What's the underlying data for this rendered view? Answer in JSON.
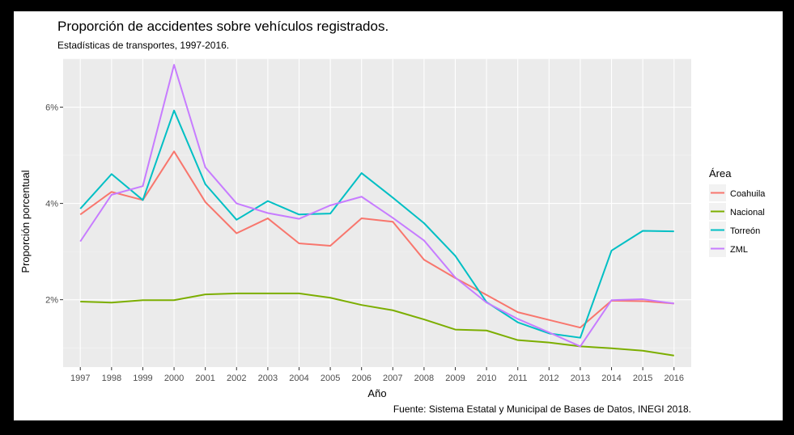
{
  "chart_data": {
    "type": "line",
    "title": "Proporción de accidentes sobre vehículos registrados.",
    "subtitle": "Estadísticas de transportes, 1997-2016.",
    "xlabel": "Año",
    "ylabel": "Proporción porcentual",
    "caption": "Fuente: Sistema Estatal y Municipal de Bases de Datos, INEGI 2018.",
    "x": [
      1997,
      1998,
      1999,
      2000,
      2001,
      2002,
      2003,
      2004,
      2005,
      2006,
      2007,
      2008,
      2009,
      2010,
      2011,
      2012,
      2013,
      2014,
      2015,
      2016
    ],
    "ylim": [
      0.6,
      7.0
    ],
    "yticks": [
      2,
      4,
      6
    ],
    "ytick_labels": [
      "2%",
      "4%",
      "6%"
    ],
    "legend_title": "Área",
    "legend_position": "right",
    "series": [
      {
        "name": "Coahuila",
        "color": "#F8766D",
        "values": [
          3.77,
          4.24,
          4.07,
          5.08,
          4.03,
          3.38,
          3.69,
          3.17,
          3.12,
          3.69,
          3.62,
          2.83,
          2.45,
          2.1,
          1.74,
          1.58,
          1.42,
          1.98,
          1.97,
          1.92
        ]
      },
      {
        "name": "Nacional",
        "color": "#7CAE00",
        "values": [
          1.96,
          1.94,
          1.99,
          1.99,
          2.11,
          2.13,
          2.13,
          2.13,
          2.04,
          1.89,
          1.78,
          1.59,
          1.38,
          1.36,
          1.16,
          1.11,
          1.03,
          0.99,
          0.94,
          0.84
        ]
      },
      {
        "name": "Torreón",
        "color": "#00BFC4",
        "values": [
          3.89,
          4.61,
          4.07,
          5.93,
          4.4,
          3.66,
          4.05,
          3.77,
          3.79,
          4.63,
          4.12,
          3.59,
          2.91,
          1.95,
          1.53,
          1.3,
          1.21,
          3.02,
          3.43,
          3.42
        ]
      },
      {
        "name": "ZML",
        "color": "#C77CFF",
        "values": [
          3.21,
          4.18,
          4.36,
          6.88,
          4.75,
          4.0,
          3.8,
          3.68,
          3.96,
          4.14,
          3.7,
          3.23,
          2.46,
          1.94,
          1.6,
          1.32,
          1.03,
          1.99,
          2.01,
          1.92
        ]
      }
    ]
  }
}
